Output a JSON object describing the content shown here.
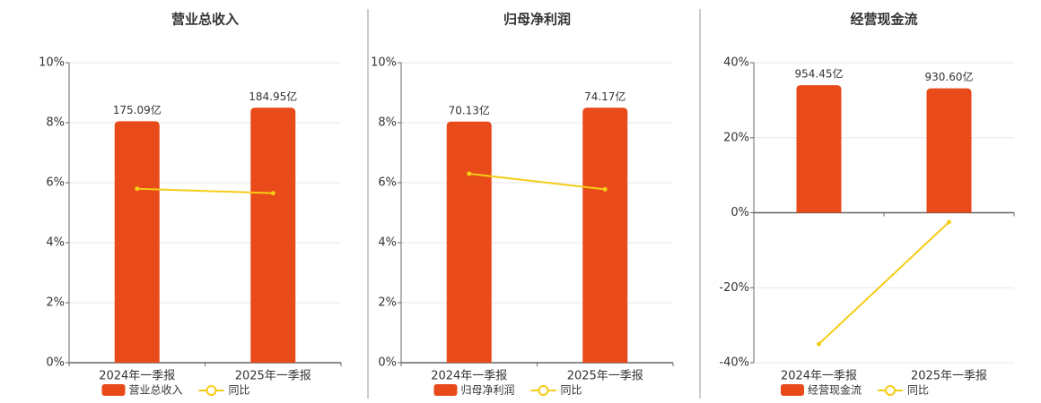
{
  "chart_data": [
    {
      "type": "bar",
      "title": "营业总收入",
      "categories": [
        "2024年一季报",
        "2025年一季报"
      ],
      "series": [
        {
          "name": "营业总收入",
          "type": "bar",
          "color": "#e84a1a",
          "values": [
            175.09,
            184.95
          ],
          "value_labels": [
            "175.09亿",
            "184.95亿"
          ]
        },
        {
          "name": "同比",
          "type": "line",
          "color": "#f5cc16",
          "values": [
            5.8,
            5.65
          ]
        }
      ],
      "ylim": [
        0,
        10
      ],
      "yticks": [
        {
          "value": 0,
          "label": "0%"
        },
        {
          "value": 2,
          "label": "2%"
        },
        {
          "value": 4,
          "label": "4%"
        },
        {
          "value": 6,
          "label": "6%"
        },
        {
          "value": 8,
          "label": "8%"
        },
        {
          "value": 10,
          "label": "10%"
        }
      ],
      "grid": true
    },
    {
      "type": "bar",
      "title": "归母净利润",
      "categories": [
        "2024年一季报",
        "2025年一季报"
      ],
      "series": [
        {
          "name": "归母净利润",
          "type": "bar",
          "color": "#e84a1a",
          "values": [
            70.13,
            74.17
          ],
          "value_labels": [
            "70.13亿",
            "74.17亿"
          ]
        },
        {
          "name": "同比",
          "type": "line",
          "color": "#f5cc16",
          "values": [
            6.3,
            5.78
          ]
        }
      ],
      "ylim": [
        0,
        10
      ],
      "yticks": [
        {
          "value": 0,
          "label": "0%"
        },
        {
          "value": 2,
          "label": "2%"
        },
        {
          "value": 4,
          "label": "4%"
        },
        {
          "value": 6,
          "label": "6%"
        },
        {
          "value": 8,
          "label": "8%"
        },
        {
          "value": 10,
          "label": "10%"
        }
      ],
      "grid": true
    },
    {
      "type": "bar",
      "title": "经营现金流",
      "categories": [
        "2024年一季报",
        "2025年一季报"
      ],
      "series": [
        {
          "name": "经营现金流",
          "type": "bar",
          "color": "#e84a1a",
          "values": [
            954.45,
            930.6
          ],
          "value_labels": [
            "954.45亿",
            "930.60亿"
          ]
        },
        {
          "name": "同比",
          "type": "line",
          "color": "#f5cc16",
          "values": [
            -35,
            -2.5
          ]
        }
      ],
      "ylim": [
        -40,
        40
      ],
      "yticks": [
        {
          "value": -40,
          "label": "-40%"
        },
        {
          "value": -20,
          "label": "-20%"
        },
        {
          "value": 0,
          "label": "0%"
        },
        {
          "value": 20,
          "label": "20%"
        },
        {
          "value": 40,
          "label": "40%"
        }
      ],
      "grid": true
    }
  ]
}
